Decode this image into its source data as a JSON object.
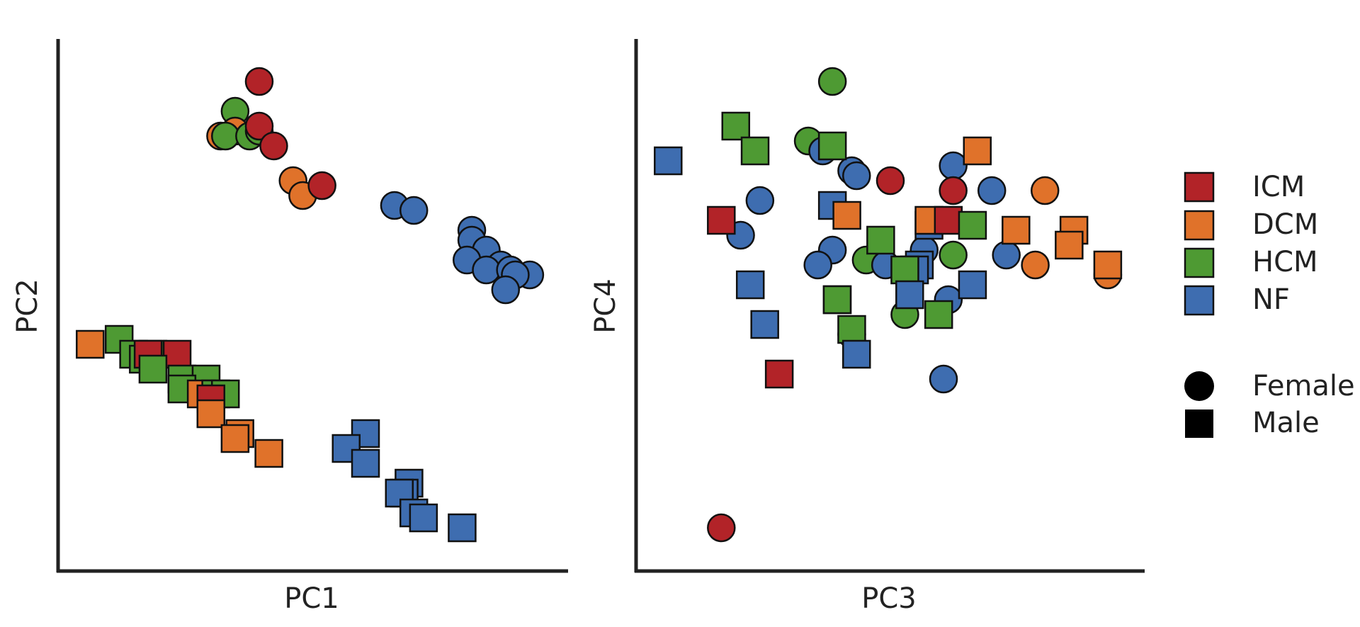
{
  "chart_data": [
    {
      "type": "scatter",
      "xlabel": "PC1",
      "ylabel": "PC2",
      "xlim": [
        0,
        100
      ],
      "ylim": [
        0,
        100
      ],
      "grid": false,
      "ticks_shown": false,
      "points": [
        {
          "x": 39,
          "y": 95,
          "group": "ICM",
          "sex": "Female"
        },
        {
          "x": 34,
          "y": 89,
          "group": "HCM",
          "sex": "Female"
        },
        {
          "x": 31,
          "y": 84,
          "group": "DCM",
          "sex": "Female"
        },
        {
          "x": 34,
          "y": 85,
          "group": "DCM",
          "sex": "Female"
        },
        {
          "x": 32,
          "y": 84,
          "group": "HCM",
          "sex": "Female"
        },
        {
          "x": 37,
          "y": 84,
          "group": "HCM",
          "sex": "Female"
        },
        {
          "x": 39,
          "y": 85,
          "group": "HCM",
          "sex": "Female"
        },
        {
          "x": 39,
          "y": 86,
          "group": "ICM",
          "sex": "Female"
        },
        {
          "x": 42,
          "y": 82,
          "group": "ICM",
          "sex": "Female"
        },
        {
          "x": 46,
          "y": 75,
          "group": "DCM",
          "sex": "Female"
        },
        {
          "x": 48,
          "y": 72,
          "group": "DCM",
          "sex": "Female"
        },
        {
          "x": 52,
          "y": 74,
          "group": "ICM",
          "sex": "Female"
        },
        {
          "x": 67,
          "y": 70,
          "group": "NF",
          "sex": "Female"
        },
        {
          "x": 71,
          "y": 69,
          "group": "NF",
          "sex": "Female"
        },
        {
          "x": 83,
          "y": 65,
          "group": "NF",
          "sex": "Female"
        },
        {
          "x": 83,
          "y": 63,
          "group": "NF",
          "sex": "Female"
        },
        {
          "x": 86,
          "y": 61,
          "group": "NF",
          "sex": "Female"
        },
        {
          "x": 82,
          "y": 59,
          "group": "NF",
          "sex": "Female"
        },
        {
          "x": 89,
          "y": 58,
          "group": "NF",
          "sex": "Female"
        },
        {
          "x": 86,
          "y": 57,
          "group": "NF",
          "sex": "Female"
        },
        {
          "x": 91,
          "y": 57,
          "group": "NF",
          "sex": "Female"
        },
        {
          "x": 95,
          "y": 56,
          "group": "NF",
          "sex": "Female"
        },
        {
          "x": 92,
          "y": 56,
          "group": "NF",
          "sex": "Female"
        },
        {
          "x": 90,
          "y": 53,
          "group": "NF",
          "sex": "Female"
        },
        {
          "x": 4,
          "y": 42,
          "group": "DCM",
          "sex": "Male"
        },
        {
          "x": 10,
          "y": 43,
          "group": "HCM",
          "sex": "Male"
        },
        {
          "x": 13,
          "y": 40,
          "group": "HCM",
          "sex": "Male"
        },
        {
          "x": 15,
          "y": 39,
          "group": "HCM",
          "sex": "Male"
        },
        {
          "x": 17,
          "y": 40,
          "group": "HCM",
          "sex": "Male"
        },
        {
          "x": 16,
          "y": 40,
          "group": "ICM",
          "sex": "Male"
        },
        {
          "x": 22,
          "y": 40,
          "group": "ICM",
          "sex": "Male"
        },
        {
          "x": 17,
          "y": 37,
          "group": "HCM",
          "sex": "Male"
        },
        {
          "x": 23,
          "y": 35,
          "group": "HCM",
          "sex": "Male"
        },
        {
          "x": 28,
          "y": 35,
          "group": "HCM",
          "sex": "Male"
        },
        {
          "x": 23,
          "y": 33,
          "group": "HCM",
          "sex": "Male"
        },
        {
          "x": 27,
          "y": 32,
          "group": "DCM",
          "sex": "Male"
        },
        {
          "x": 30,
          "y": 32,
          "group": "HCM",
          "sex": "Male"
        },
        {
          "x": 32,
          "y": 32,
          "group": "HCM",
          "sex": "Male"
        },
        {
          "x": 29,
          "y": 31,
          "group": "ICM",
          "sex": "Male"
        },
        {
          "x": 29,
          "y": 28,
          "group": "DCM",
          "sex": "Male"
        },
        {
          "x": 35,
          "y": 24,
          "group": "DCM",
          "sex": "Male"
        },
        {
          "x": 34,
          "y": 23,
          "group": "DCM",
          "sex": "Male"
        },
        {
          "x": 41,
          "y": 20,
          "group": "DCM",
          "sex": "Male"
        },
        {
          "x": 61,
          "y": 24,
          "group": "NF",
          "sex": "Male"
        },
        {
          "x": 57,
          "y": 21,
          "group": "NF",
          "sex": "Male"
        },
        {
          "x": 61,
          "y": 18,
          "group": "NF",
          "sex": "Male"
        },
        {
          "x": 70,
          "y": 14,
          "group": "NF",
          "sex": "Male"
        },
        {
          "x": 69,
          "y": 12,
          "group": "NF",
          "sex": "Male"
        },
        {
          "x": 68,
          "y": 12,
          "group": "NF",
          "sex": "Male"
        },
        {
          "x": 71,
          "y": 8,
          "group": "NF",
          "sex": "Male"
        },
        {
          "x": 73,
          "y": 7,
          "group": "NF",
          "sex": "Male"
        },
        {
          "x": 81,
          "y": 5,
          "group": "NF",
          "sex": "Male"
        }
      ]
    },
    {
      "type": "scatter",
      "xlabel": "PC3",
      "ylabel": "PC4",
      "xlim": [
        0,
        100
      ],
      "ylim": [
        0,
        100
      ],
      "grid": false,
      "ticks_shown": false,
      "points": [
        {
          "x": 38,
          "y": 95,
          "group": "HCM",
          "sex": "Female"
        },
        {
          "x": 33,
          "y": 83,
          "group": "HCM",
          "sex": "Female"
        },
        {
          "x": 36,
          "y": 81,
          "group": "NF",
          "sex": "Female"
        },
        {
          "x": 42,
          "y": 77,
          "group": "NF",
          "sex": "Female"
        },
        {
          "x": 43,
          "y": 76,
          "group": "NF",
          "sex": "Female"
        },
        {
          "x": 50,
          "y": 75,
          "group": "ICM",
          "sex": "Female"
        },
        {
          "x": 63,
          "y": 78,
          "group": "NF",
          "sex": "Female"
        },
        {
          "x": 63,
          "y": 73,
          "group": "ICM",
          "sex": "Female"
        },
        {
          "x": 71,
          "y": 73,
          "group": "NF",
          "sex": "Female"
        },
        {
          "x": 82,
          "y": 73,
          "group": "DCM",
          "sex": "Female"
        },
        {
          "x": 23,
          "y": 71,
          "group": "NF",
          "sex": "Female"
        },
        {
          "x": 19,
          "y": 64,
          "group": "NF",
          "sex": "Female"
        },
        {
          "x": 38,
          "y": 61,
          "group": "NF",
          "sex": "Female"
        },
        {
          "x": 35,
          "y": 58,
          "group": "NF",
          "sex": "Female"
        },
        {
          "x": 45,
          "y": 59,
          "group": "HCM",
          "sex": "Female"
        },
        {
          "x": 49,
          "y": 58,
          "group": "NF",
          "sex": "Female"
        },
        {
          "x": 57,
          "y": 61,
          "group": "NF",
          "sex": "Female"
        },
        {
          "x": 63,
          "y": 60,
          "group": "HCM",
          "sex": "Female"
        },
        {
          "x": 74,
          "y": 60,
          "group": "NF",
          "sex": "Female"
        },
        {
          "x": 80,
          "y": 58,
          "group": "DCM",
          "sex": "Female"
        },
        {
          "x": 95,
          "y": 56,
          "group": "DCM",
          "sex": "Female"
        },
        {
          "x": 62,
          "y": 51,
          "group": "NF",
          "sex": "Female"
        },
        {
          "x": 53,
          "y": 48,
          "group": "HCM",
          "sex": "Female"
        },
        {
          "x": 42,
          "y": 44,
          "group": "ICM",
          "sex": "Female"
        },
        {
          "x": 61,
          "y": 35,
          "group": "NF",
          "sex": "Female"
        },
        {
          "x": 15,
          "y": 5,
          "group": "ICM",
          "sex": "Female"
        },
        {
          "x": 4,
          "y": 79,
          "group": "NF",
          "sex": "Male"
        },
        {
          "x": 18,
          "y": 86,
          "group": "HCM",
          "sex": "Male"
        },
        {
          "x": 22,
          "y": 81,
          "group": "HCM",
          "sex": "Male"
        },
        {
          "x": 38,
          "y": 82,
          "group": "HCM",
          "sex": "Male"
        },
        {
          "x": 68,
          "y": 81,
          "group": "DCM",
          "sex": "Male"
        },
        {
          "x": 15,
          "y": 67,
          "group": "ICM",
          "sex": "Male"
        },
        {
          "x": 38,
          "y": 70,
          "group": "NF",
          "sex": "Male"
        },
        {
          "x": 41,
          "y": 68,
          "group": "DCM",
          "sex": "Male"
        },
        {
          "x": 58,
          "y": 66,
          "group": "NF",
          "sex": "Male"
        },
        {
          "x": 58,
          "y": 67,
          "group": "DCM",
          "sex": "Male"
        },
        {
          "x": 62,
          "y": 67,
          "group": "ICM",
          "sex": "Male"
        },
        {
          "x": 67,
          "y": 66,
          "group": "HCM",
          "sex": "Male"
        },
        {
          "x": 76,
          "y": 65,
          "group": "DCM",
          "sex": "Male"
        },
        {
          "x": 88,
          "y": 65,
          "group": "DCM",
          "sex": "Male"
        },
        {
          "x": 87,
          "y": 62,
          "group": "DCM",
          "sex": "Male"
        },
        {
          "x": 48,
          "y": 63,
          "group": "HCM",
          "sex": "Male"
        },
        {
          "x": 56,
          "y": 58,
          "group": "NF",
          "sex": "Male"
        },
        {
          "x": 55,
          "y": 57,
          "group": "NF",
          "sex": "Male"
        },
        {
          "x": 53,
          "y": 57,
          "group": "HCM",
          "sex": "Male"
        },
        {
          "x": 95,
          "y": 58,
          "group": "DCM",
          "sex": "Male"
        },
        {
          "x": 21,
          "y": 54,
          "group": "NF",
          "sex": "Male"
        },
        {
          "x": 67,
          "y": 54,
          "group": "NF",
          "sex": "Male"
        },
        {
          "x": 39,
          "y": 51,
          "group": "HCM",
          "sex": "Male"
        },
        {
          "x": 39,
          "y": 51,
          "group": "HCM",
          "sex": "Male"
        },
        {
          "x": 54,
          "y": 52,
          "group": "NF",
          "sex": "Male"
        },
        {
          "x": 60,
          "y": 48,
          "group": "HCM",
          "sex": "Male"
        },
        {
          "x": 24,
          "y": 46,
          "group": "NF",
          "sex": "Male"
        },
        {
          "x": 42,
          "y": 45,
          "group": "HCM",
          "sex": "Male"
        },
        {
          "x": 43,
          "y": 40,
          "group": "NF",
          "sex": "Male"
        },
        {
          "x": 27,
          "y": 36,
          "group": "ICM",
          "sex": "Male"
        }
      ]
    }
  ],
  "legend": {
    "placement": "right",
    "groups": [
      {
        "label": "ICM",
        "color": "#B22328"
      },
      {
        "label": "DCM",
        "color": "#E0722A"
      },
      {
        "label": "HCM",
        "color": "#4E9A33"
      },
      {
        "label": "NF",
        "color": "#3E6DB0"
      }
    ],
    "shapes": [
      {
        "label": "Female",
        "shape": "circle"
      },
      {
        "label": "Male",
        "shape": "square"
      }
    ]
  }
}
